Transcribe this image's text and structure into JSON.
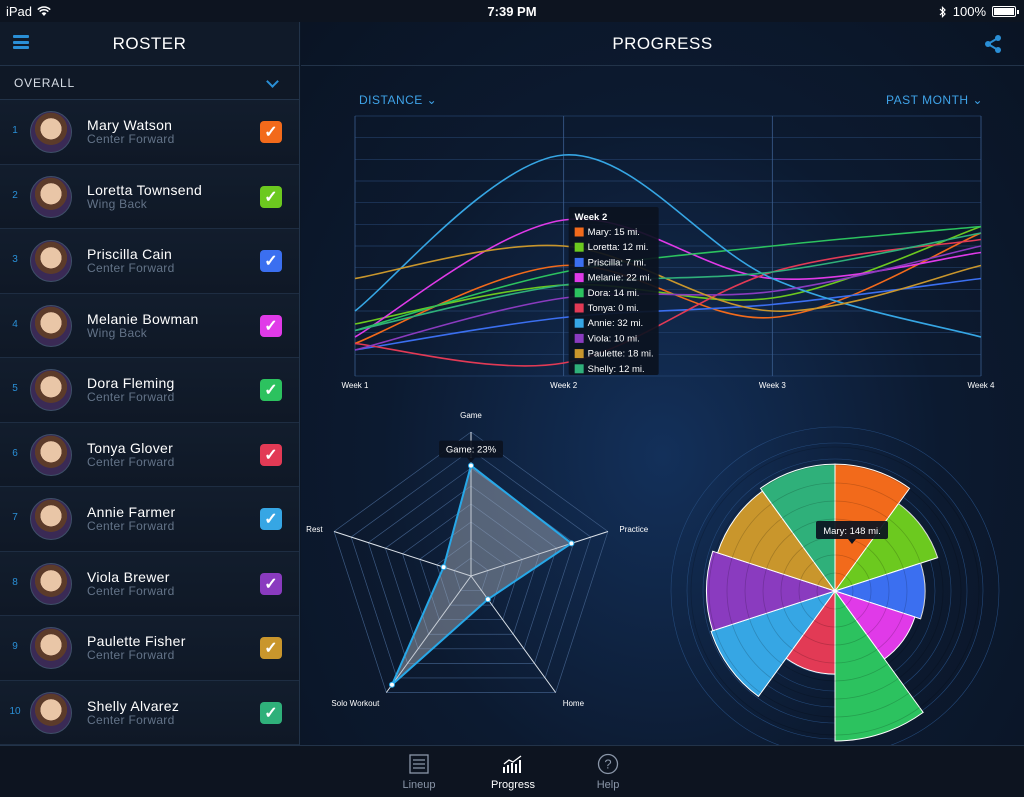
{
  "status": {
    "device": "iPad",
    "time": "7:39 PM",
    "battery": "100%"
  },
  "roster": {
    "title": "ROSTER",
    "filter": "OVERALL",
    "players": [
      {
        "num": "1",
        "name": "Mary Watson",
        "position": "Center Forward",
        "color": "#f26a1b"
      },
      {
        "num": "2",
        "name": "Loretta Townsend",
        "position": "Wing Back",
        "color": "#6cc91f"
      },
      {
        "num": "3",
        "name": "Priscilla Cain",
        "position": "Center Forward",
        "color": "#3b6ff0"
      },
      {
        "num": "4",
        "name": "Melanie Bowman",
        "position": "Wing Back",
        "color": "#e03ae8"
      },
      {
        "num": "5",
        "name": "Dora Fleming",
        "position": "Center Forward",
        "color": "#2cc25f"
      },
      {
        "num": "6",
        "name": "Tonya Glover",
        "position": "Center Forward",
        "color": "#e23a55"
      },
      {
        "num": "7",
        "name": "Annie Farmer",
        "position": "Center Forward",
        "color": "#36a6e4"
      },
      {
        "num": "8",
        "name": "Viola Brewer",
        "position": "Center Forward",
        "color": "#8a3bbf"
      },
      {
        "num": "9",
        "name": "Paulette Fisher",
        "position": "Center Forward",
        "color": "#c9962c"
      },
      {
        "num": "10",
        "name": "Shelly Alvarez",
        "position": "Center Forward",
        "color": "#2fb07a"
      }
    ]
  },
  "progress": {
    "title": "PROGRESS",
    "metric": "DISTANCE",
    "period": "PAST MONTH"
  },
  "chart_data": [
    {
      "type": "line",
      "x": [
        "Week 1",
        "Week 2",
        "Week 3",
        "Week 4"
      ],
      "series": [
        {
          "name": "Mary",
          "color": "#f26a1b",
          "values": [
            3,
            15,
            7,
            20
          ]
        },
        {
          "name": "Loretta",
          "color": "#6cc91f",
          "values": [
            6,
            12,
            10,
            21
          ]
        },
        {
          "name": "Priscilla",
          "color": "#3b6ff0",
          "values": [
            2,
            7,
            9,
            13
          ]
        },
        {
          "name": "Melanie",
          "color": "#e03ae8",
          "values": [
            4,
            22,
            13,
            17
          ]
        },
        {
          "name": "Dora",
          "color": "#2cc25f",
          "values": [
            5,
            14,
            18,
            21
          ]
        },
        {
          "name": "Tonya",
          "color": "#e23a55",
          "values": [
            3,
            0,
            14,
            19
          ]
        },
        {
          "name": "Annie",
          "color": "#36a6e4",
          "values": [
            8,
            32,
            13,
            4
          ]
        },
        {
          "name": "Viola",
          "color": "#8a3bbf",
          "values": [
            2,
            10,
            11,
            18
          ]
        },
        {
          "name": "Paulette",
          "color": "#c9962c",
          "values": [
            13,
            18,
            8,
            15
          ]
        },
        {
          "name": "Shelly",
          "color": "#2fb07a",
          "values": [
            5,
            12,
            14,
            20
          ]
        }
      ],
      "tooltip": {
        "title": "Week 2",
        "items": [
          "Mary: 15 mi.",
          "Loretta: 12 mi.",
          "Priscilla: 7 mi.",
          "Melanie: 22 mi.",
          "Dora: 14 mi.",
          "Tonya: 0 mi.",
          "Annie: 32 mi.",
          "Viola: 10 mi.",
          "Paulette: 18 mi.",
          "Shelly: 12 mi."
        ]
      },
      "ylim": [
        -2,
        38
      ],
      "grid": true
    },
    {
      "type": "radar",
      "axes": [
        "Game",
        "Practice",
        "Home",
        "Solo Workout",
        "Rest"
      ],
      "values": [
        23,
        22,
        6,
        28,
        6
      ],
      "max": 30,
      "tooltip": "Game: 23%",
      "fill": "#b0b6c0",
      "stroke": "#27a8e8"
    },
    {
      "type": "polar-area",
      "series": [
        {
          "name": "Mary",
          "value": 148,
          "color": "#f26a1b"
        },
        {
          "name": "Loretta",
          "value": 126,
          "color": "#6cc91f"
        },
        {
          "name": "Priscilla",
          "value": 105,
          "color": "#3b6ff0"
        },
        {
          "name": "Melanie",
          "value": 98,
          "color": "#e03ae8"
        },
        {
          "name": "Dora",
          "value": 175,
          "color": "#2cc25f"
        },
        {
          "name": "Tonya",
          "value": 97,
          "color": "#e23a55"
        },
        {
          "name": "Annie",
          "value": 152,
          "color": "#36a6e4"
        },
        {
          "name": "Viola",
          "value": 150,
          "color": "#8a3bbf"
        },
        {
          "name": "Paulette",
          "value": 144,
          "color": "#c9962c"
        },
        {
          "name": "Shelly",
          "value": 148,
          "color": "#2fb07a"
        }
      ],
      "max": 175,
      "tooltip": "Mary: 148 mi."
    }
  ],
  "tabs": [
    {
      "label": "Lineup",
      "icon": "list-icon",
      "active": false
    },
    {
      "label": "Progress",
      "icon": "bar-chart-icon",
      "active": true
    },
    {
      "label": "Help",
      "icon": "help-icon",
      "active": false
    }
  ]
}
